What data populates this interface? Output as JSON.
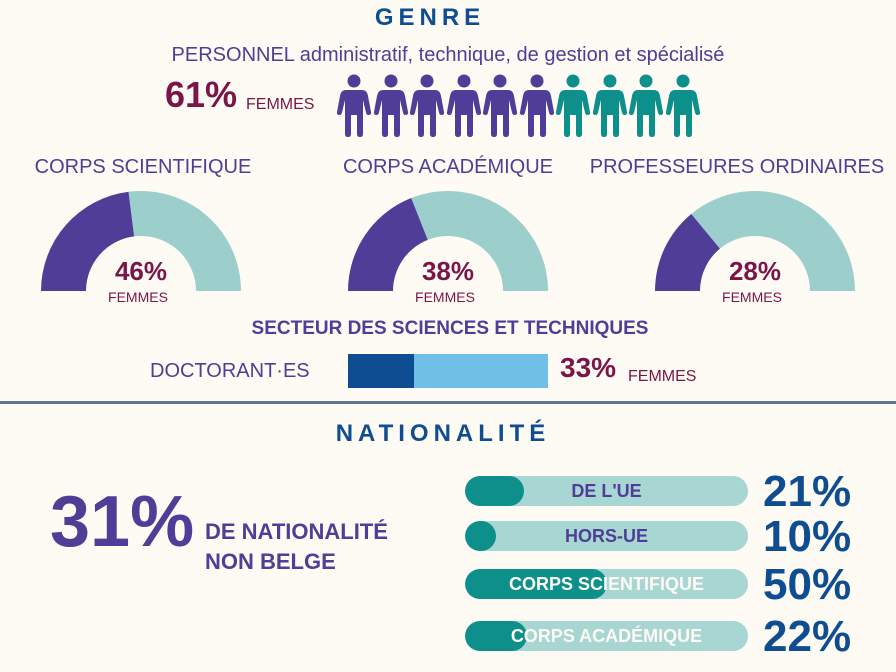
{
  "genre": {
    "heading": "GENRE",
    "staff": {
      "subtitle_bold": "PERSONNEL",
      "subtitle_rest": " administratif, technique, de gestion et spécialisé",
      "percent": "61%",
      "label": "FEMMES",
      "women_share": 0.61,
      "icons_total": 10,
      "icons_women": 6
    },
    "gauges": [
      {
        "title": "CORPS SCIENTIFIQUE",
        "percent": "46%",
        "label": "FEMMES",
        "value": 46
      },
      {
        "title": "CORPS ACADÉMIQUE",
        "percent": "38%",
        "label": "FEMMES",
        "value": 38
      },
      {
        "title": "PROFESSEURES ORDINAIRES",
        "percent": "28%",
        "label": "FEMMES",
        "value": 28
      }
    ],
    "sector": {
      "title": "SECTEUR DES SCIENCES ET TECHNIQUES",
      "doc_label": "DOCTORANT·ES",
      "percent": "33%",
      "label": "FEMMES",
      "value": 33
    }
  },
  "nationalite": {
    "heading": "NATIONALITÉ",
    "big_percent": "31%",
    "text_line1": "DE NATIONALITÉ",
    "text_line2": "NON BELGE",
    "bars": [
      {
        "label": "DE L'UE",
        "percent": "21%",
        "value": 21
      },
      {
        "label": "HORS-UE",
        "percent": "10%",
        "value": 10
      },
      {
        "label": "CORPS SCIENTIFIQUE",
        "percent": "50%",
        "value": 50
      },
      {
        "label": "CORPS ACADÉMIQUE",
        "percent": "22%",
        "value": 22
      }
    ]
  },
  "colors": {
    "women": "#4e3e97",
    "men": "#0d8f8c",
    "gauge_rest": "#9ccfcc",
    "heading": "#0f4d92",
    "accent": "#7b1548"
  },
  "icons": [
    "person-icon"
  ]
}
